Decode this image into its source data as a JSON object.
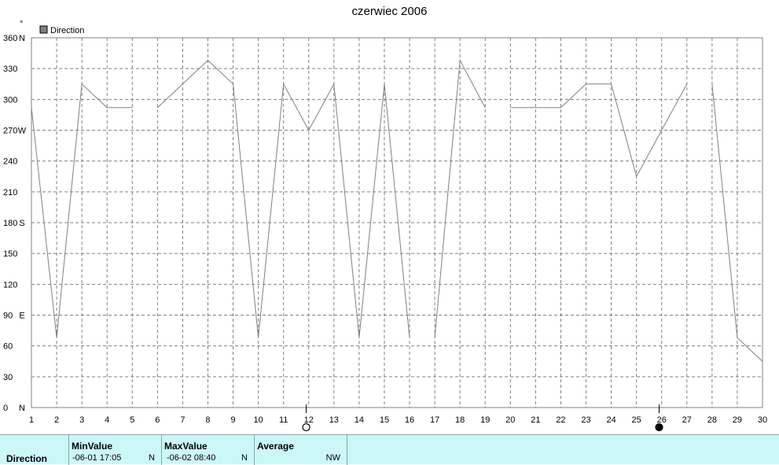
{
  "chart_data": {
    "type": "line",
    "title": "czerwiec 2006",
    "legend": "Direction",
    "legend_placement": "top-left",
    "grid": true,
    "ylim": [
      0,
      360
    ],
    "xlim": [
      1,
      30
    ],
    "y_ticks": [
      {
        "value": 0,
        "label": "0",
        "dir": "N"
      },
      {
        "value": 30,
        "label": "30",
        "dir": ""
      },
      {
        "value": 60,
        "label": "60",
        "dir": ""
      },
      {
        "value": 90,
        "label": "90",
        "dir": "E"
      },
      {
        "value": 120,
        "label": "120",
        "dir": ""
      },
      {
        "value": 150,
        "label": "150",
        "dir": ""
      },
      {
        "value": 180,
        "label": "180",
        "dir": "S"
      },
      {
        "value": 210,
        "label": "210",
        "dir": ""
      },
      {
        "value": 240,
        "label": "240",
        "dir": ""
      },
      {
        "value": 270,
        "label": "270",
        "dir": "W"
      },
      {
        "value": 300,
        "label": "300",
        "dir": ""
      },
      {
        "value": 330,
        "label": "330",
        "dir": ""
      },
      {
        "value": 360,
        "label": "360",
        "dir": "N"
      }
    ],
    "x_ticks": [
      1,
      2,
      3,
      4,
      5,
      6,
      7,
      8,
      9,
      10,
      11,
      12,
      13,
      14,
      15,
      16,
      17,
      18,
      19,
      20,
      21,
      22,
      23,
      24,
      25,
      26,
      27,
      28,
      29,
      30
    ],
    "series": [
      {
        "color": "#808080",
        "segments": [
          [
            [
              1,
              292
            ],
            [
              2,
              68
            ],
            [
              3,
              315
            ],
            [
              4,
              292
            ],
            [
              5,
              292
            ]
          ],
          [
            [
              6,
              292
            ],
            [
              7,
              315
            ],
            [
              8,
              338
            ],
            [
              9,
              315
            ],
            [
              10,
              68
            ],
            [
              11,
              315
            ],
            [
              12,
              270
            ],
            [
              13,
              315
            ],
            [
              14,
              68
            ],
            [
              15,
              315
            ],
            [
              16,
              68
            ]
          ],
          [
            [
              17,
              68
            ],
            [
              18,
              338
            ],
            [
              19,
              292
            ]
          ],
          [
            [
              20,
              292
            ],
            [
              21,
              292
            ],
            [
              22,
              292
            ],
            [
              23,
              315
            ],
            [
              24,
              315
            ],
            [
              25,
              225
            ],
            [
              26,
              270
            ],
            [
              27,
              315
            ]
          ],
          [
            [
              28,
              315
            ],
            [
              29,
              68
            ],
            [
              30,
              45
            ]
          ]
        ]
      }
    ],
    "moon_phases": [
      {
        "x": 11.9,
        "phase": "full"
      },
      {
        "x": 25.9,
        "phase": "new"
      }
    ]
  },
  "stats": {
    "row_label": "Direction",
    "min": {
      "header": "MinValue",
      "time": "-06-01  17:05",
      "value": "N"
    },
    "max": {
      "header": "MaxValue",
      "time": "-06-02  08:40",
      "value": "N"
    },
    "avg": {
      "header": "Average",
      "value": "NW"
    }
  },
  "unit_mark": "°"
}
